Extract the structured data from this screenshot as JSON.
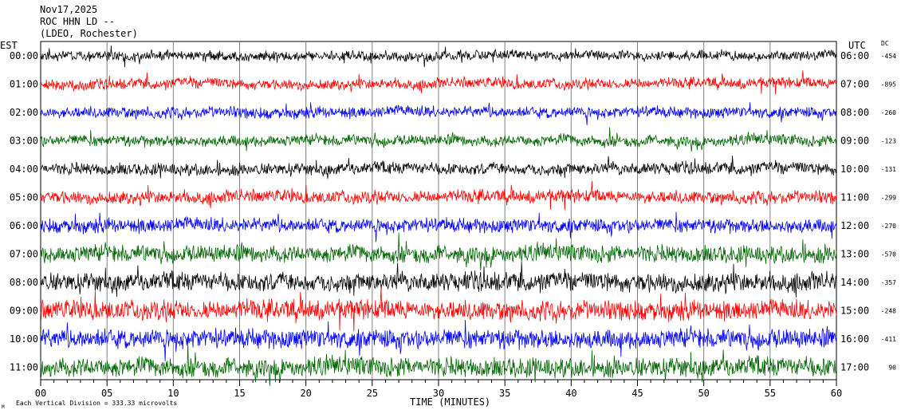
{
  "header": {
    "line1": "Nov17,2025",
    "line2": "ROC HHN LD --",
    "line3": "(LDEO, Rochester)"
  },
  "left_axis_title": "EST",
  "right_axis_title": "UTC",
  "dc_title": "DC",
  "footer": {
    "x_axis_label": "TIME (MINUTES)",
    "scale_note": "Each Vertical Division = 333.33 microvolts",
    "corner_mark": "M"
  },
  "colors": {
    "black": "#000000",
    "red": "#ff0000",
    "blue": "#0000ff",
    "green": "#006400",
    "grid": "#808080"
  },
  "chart_data": {
    "type": "line",
    "title": "Nov17,2025 ROC HHN LD -- (LDEO, Rochester)",
    "xlabel": "TIME (MINUTES)",
    "xlim": [
      0,
      60
    ],
    "x_ticks": [
      "00",
      "05",
      "10",
      "15",
      "20",
      "25",
      "30",
      "35",
      "40",
      "45",
      "50",
      "55",
      "60"
    ],
    "grid": true,
    "rows": [
      {
        "est": "00:00",
        "utc": "06:00",
        "dc": "-454",
        "color": "#000000",
        "activity": 0.35
      },
      {
        "est": "01:00",
        "utc": "07:00",
        "dc": "-895",
        "color": "#ff0000",
        "activity": 0.4
      },
      {
        "est": "02:00",
        "utc": "08:00",
        "dc": "-260",
        "color": "#0000ff",
        "activity": 0.45
      },
      {
        "est": "03:00",
        "utc": "09:00",
        "dc": "-123",
        "color": "#006400",
        "activity": 0.45
      },
      {
        "est": "04:00",
        "utc": "10:00",
        "dc": "-131",
        "color": "#000000",
        "activity": 0.5
      },
      {
        "est": "05:00",
        "utc": "11:00",
        "dc": "-299",
        "color": "#ff0000",
        "activity": 0.55
      },
      {
        "est": "06:00",
        "utc": "12:00",
        "dc": "-270",
        "color": "#0000ff",
        "activity": 0.65
      },
      {
        "est": "07:00",
        "utc": "13:00",
        "dc": "-570",
        "color": "#006400",
        "activity": 0.85
      },
      {
        "est": "08:00",
        "utc": "14:00",
        "dc": "-357",
        "color": "#000000",
        "activity": 0.95
      },
      {
        "est": "09:00",
        "utc": "15:00",
        "dc": "-248",
        "color": "#ff0000",
        "activity": 1.0
      },
      {
        "est": "10:00",
        "utc": "16:00",
        "dc": "-411",
        "color": "#0000ff",
        "activity": 1.0
      },
      {
        "est": "11:00",
        "utc": "17:00",
        "dc": "90",
        "color": "#006400",
        "activity": 1.0
      }
    ]
  }
}
